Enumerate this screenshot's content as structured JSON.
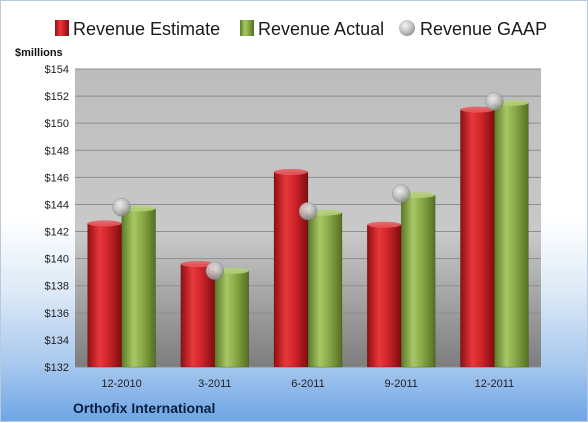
{
  "chart_data": {
    "type": "bar",
    "unit_label": "$millions",
    "footer": "Orthofix International",
    "categories": [
      "12-2010",
      "3-2011",
      "6-2011",
      "9-2011",
      "12-2011"
    ],
    "series": [
      {
        "name": "Revenue Estimate",
        "kind": "bar",
        "color": "#cc1f24",
        "values": [
          142.6,
          139.6,
          146.4,
          142.5,
          151.0
        ]
      },
      {
        "name": "Revenue Actual",
        "kind": "bar",
        "color": "#86a845",
        "values": [
          143.7,
          139.1,
          143.4,
          144.7,
          151.5
        ]
      },
      {
        "name": "Revenue GAAP",
        "kind": "marker",
        "color": "#b8b8b8",
        "values": [
          143.8,
          139.1,
          143.5,
          144.8,
          151.6
        ]
      }
    ],
    "yticks": [
      132,
      134,
      136,
      138,
      140,
      142,
      144,
      146,
      148,
      150,
      152,
      154
    ],
    "ylim": [
      132,
      154
    ],
    "grid": true,
    "legend_position": "top"
  }
}
